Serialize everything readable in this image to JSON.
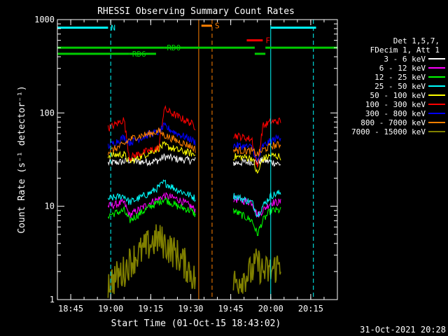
{
  "chart_data": {
    "type": "line",
    "title": "RHESSI Observing Summary Count Rates",
    "xlabel": "Start Time (01-Oct-15 18:43:02)",
    "ylabel": "Count Rate (s⁻¹ detector⁻¹)",
    "footer": "31-Oct-2021 20:28",
    "y_scale": "log",
    "ylim": [
      1,
      1000
    ],
    "xlim": [
      "18:40",
      "20:25"
    ],
    "x_ticks": [
      "18:45",
      "19:00",
      "19:15",
      "19:30",
      "19:45",
      "20:00",
      "20:15"
    ],
    "y_ticks": [
      "1",
      "10",
      "100",
      "1000"
    ],
    "grid": false,
    "legend_position": "top-right",
    "legend_header": [
      "Det 1,5,7,",
      "FDecim 1, Att 1"
    ],
    "series": [
      {
        "name": "3 - 6 keV",
        "color": "#ffffff",
        "x": [
          "18:59",
          "19:05",
          "19:07",
          "19:10",
          "19:15",
          "19:18",
          "19:20",
          "19:25",
          "19:30",
          "19:32",
          "19:46",
          "19:53",
          "19:55",
          "19:57",
          "20:00",
          "20:04"
        ],
        "values": [
          29,
          30,
          31,
          30,
          30,
          31,
          34,
          32,
          31,
          31,
          29,
          30,
          30,
          31,
          30,
          28
        ]
      },
      {
        "name": "6 - 12 keV",
        "color": "#ff00ff",
        "x": [
          "18:59",
          "19:05",
          "19:07",
          "19:10",
          "19:15",
          "19:18",
          "19:20",
          "19:25",
          "19:30",
          "19:32",
          "19:46",
          "19:53",
          "19:55",
          "19:57",
          "20:00",
          "20:04"
        ],
        "values": [
          10,
          11,
          8,
          9,
          11,
          12,
          13,
          12,
          10,
          9,
          12,
          11,
          8,
          9,
          11,
          11
        ]
      },
      {
        "name": "12 - 25 keV",
        "color": "#00ff00",
        "x": [
          "18:59",
          "19:05",
          "19:07",
          "19:10",
          "19:15",
          "19:18",
          "19:20",
          "19:25",
          "19:30",
          "19:32",
          "19:46",
          "19:53",
          "19:55",
          "19:57",
          "20:00",
          "20:04"
        ],
        "values": [
          8,
          9,
          7,
          8,
          10,
          11,
          12,
          10,
          9,
          8,
          9,
          7,
          5,
          7,
          9,
          9
        ]
      },
      {
        "name": "25 - 50 keV",
        "color": "#00ffff",
        "x": [
          "18:59",
          "19:05",
          "19:07",
          "19:10",
          "19:15",
          "19:18",
          "19:20",
          "19:25",
          "19:30",
          "19:32",
          "19:46",
          "19:53",
          "19:55",
          "19:57",
          "20:00",
          "20:04"
        ],
        "values": [
          12,
          13,
          11,
          12,
          14,
          16,
          18,
          15,
          13,
          12,
          13,
          11,
          8,
          10,
          13,
          14
        ]
      },
      {
        "name": "50 - 100 keV",
        "color": "#ffff00",
        "x": [
          "18:59",
          "19:05",
          "19:07",
          "19:10",
          "19:15",
          "19:18",
          "19:20",
          "19:25",
          "19:30",
          "19:32",
          "19:46",
          "19:53",
          "19:55",
          "19:57",
          "20:00",
          "20:04"
        ],
        "values": [
          35,
          36,
          30,
          33,
          38,
          42,
          45,
          40,
          37,
          35,
          34,
          33,
          22,
          32,
          35,
          34
        ]
      },
      {
        "name": "100 - 300 keV",
        "color": "#ff0000",
        "x": [
          "18:59",
          "19:05",
          "19:07",
          "19:10",
          "19:15",
          "19:18",
          "19:20",
          "19:25",
          "19:30",
          "19:32",
          "19:46",
          "19:53",
          "19:55",
          "19:57",
          "20:00",
          "20:04"
        ],
        "values": [
          68,
          85,
          33,
          36,
          40,
          42,
          110,
          92,
          78,
          70,
          58,
          52,
          25,
          72,
          80,
          82
        ]
      },
      {
        "name": "300 - 800 keV",
        "color": "#0000ff",
        "x": [
          "18:59",
          "19:05",
          "19:07",
          "19:10",
          "19:15",
          "19:18",
          "19:20",
          "19:25",
          "19:30",
          "19:32",
          "19:46",
          "19:53",
          "19:55",
          "19:57",
          "20:00",
          "20:04"
        ],
        "values": [
          44,
          55,
          48,
          52,
          60,
          62,
          72,
          60,
          52,
          48,
          45,
          43,
          30,
          44,
          50,
          56
        ]
      },
      {
        "name": "800 - 7000 keV",
        "color": "#ff8000",
        "x": [
          "18:59",
          "19:05",
          "19:07",
          "19:10",
          "19:15",
          "19:18",
          "19:20",
          "19:25",
          "19:30",
          "19:32",
          "19:46",
          "19:53",
          "19:55",
          "19:57",
          "20:00",
          "20:04"
        ],
        "values": [
          38,
          46,
          52,
          56,
          60,
          64,
          58,
          50,
          44,
          40,
          40,
          39,
          36,
          40,
          44,
          46
        ]
      },
      {
        "name": "7000 - 15000 keV",
        "color": "#808000",
        "x": [
          "18:59",
          "19:05",
          "19:07",
          "19:10",
          "19:15",
          "19:18",
          "19:20",
          "19:25",
          "19:30",
          "19:32",
          "19:46",
          "19:53",
          "19:55",
          "19:57",
          "20:00",
          "20:04"
        ],
        "values": [
          1.5,
          2,
          2.5,
          3,
          4,
          4.5,
          4,
          3,
          2,
          1.5,
          1.5,
          2,
          2.5,
          2,
          2,
          2.5
        ]
      }
    ],
    "markers": [
      {
        "label": "N",
        "color": "#00ffff",
        "spans": [
          [
            "18:40",
            "18:59"
          ],
          [
            "20:00",
            "20:17"
          ]
        ],
        "level": 820,
        "edge_times": [
          "18:40",
          "19:00",
          "20:00",
          "20:16"
        ]
      },
      {
        "label": "S",
        "color": "#ff8000",
        "spans": [
          [
            "19:34",
            "19:38"
          ]
        ],
        "level": 860,
        "edge_times": [
          "19:33",
          "19:38"
        ]
      },
      {
        "label": "F",
        "color": "#ff0000",
        "spans": [
          [
            "19:51",
            "19:57"
          ]
        ],
        "level": 600
      },
      {
        "label": "RD0",
        "color": "#00cc00",
        "spans": [
          [
            "18:40",
            "19:20"
          ],
          [
            "19:20",
            "19:54"
          ],
          [
            "19:58",
            "20:25"
          ]
        ],
        "level": 500
      },
      {
        "label": "RD6",
        "color": "#00cc00",
        "spans": [
          [
            "18:40",
            "19:07"
          ],
          [
            "19:07",
            "19:17"
          ],
          [
            "19:54",
            "19:58"
          ]
        ],
        "level": 430
      }
    ]
  }
}
